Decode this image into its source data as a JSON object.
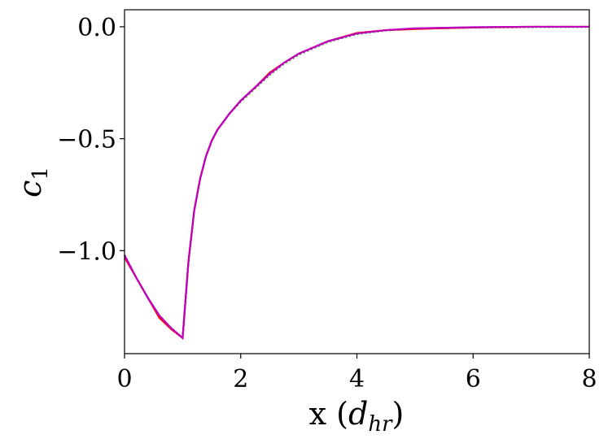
{
  "chart_data": {
    "type": "line",
    "xlabel": [
      "x (",
      "d",
      "hr",
      ")"
    ],
    "ylabel": [
      "c",
      "1"
    ],
    "x": [
      0,
      0.2,
      0.4,
      0.6,
      0.8,
      1.0,
      1.05,
      1.1,
      1.2,
      1.3,
      1.4,
      1.5,
      1.6,
      1.8,
      2.0,
      2.25,
      2.5,
      2.75,
      3.0,
      3.5,
      4.0,
      4.5,
      5.0,
      6.0,
      7.0,
      8.0
    ],
    "series": [
      {
        "color": "#2ca02c",
        "dash": true,
        "values": [
          -1.02,
          -1.12,
          -1.21,
          -1.29,
          -1.345,
          -1.39,
          -1.22,
          -1.05,
          -0.82,
          -0.68,
          -0.58,
          -0.51,
          -0.46,
          -0.39,
          -0.335,
          -0.275,
          -0.215,
          -0.165,
          -0.125,
          -0.068,
          -0.033,
          -0.017,
          -0.009,
          -0.004,
          -0.002,
          -0.001
        ]
      },
      {
        "color": "#1f3fff",
        "dash": true,
        "values": [
          -1.02,
          -1.12,
          -1.21,
          -1.29,
          -1.345,
          -1.39,
          -1.22,
          -1.05,
          -0.82,
          -0.68,
          -0.58,
          -0.51,
          -0.46,
          -0.39,
          -0.33,
          -0.27,
          -0.21,
          -0.16,
          -0.12,
          -0.065,
          -0.03,
          -0.015,
          -0.007,
          -0.002,
          0,
          0
        ]
      },
      {
        "color": "#ff0000",
        "dash": false,
        "values": [
          -1.03,
          -1.12,
          -1.21,
          -1.3,
          -1.35,
          -1.39,
          -1.22,
          -1.05,
          -0.82,
          -0.68,
          -0.58,
          -0.51,
          -0.46,
          -0.39,
          -0.33,
          -0.27,
          -0.205,
          -0.16,
          -0.12,
          -0.065,
          -0.028,
          -0.015,
          -0.01,
          -0.003,
          0,
          0
        ]
      },
      {
        "color": "#bf00bf",
        "dash": false,
        "values": [
          -1.02,
          -1.12,
          -1.21,
          -1.29,
          -1.345,
          -1.39,
          -1.22,
          -1.05,
          -0.82,
          -0.68,
          -0.58,
          -0.51,
          -0.46,
          -0.39,
          -0.33,
          -0.27,
          -0.21,
          -0.16,
          -0.12,
          -0.065,
          -0.03,
          -0.015,
          -0.007,
          -0.002,
          0,
          0
        ]
      }
    ],
    "xlim": [
      0,
      8
    ],
    "xticks": [
      0,
      2,
      4,
      6,
      8
    ],
    "ylim": [
      -1.46,
      0.076
    ],
    "yticks": [
      {
        "value": -1.0,
        "label": "−1.0"
      },
      {
        "value": -0.5,
        "label": "−0.5"
      },
      {
        "value": 0.0,
        "label": "0.0"
      }
    ],
    "grid": false
  }
}
